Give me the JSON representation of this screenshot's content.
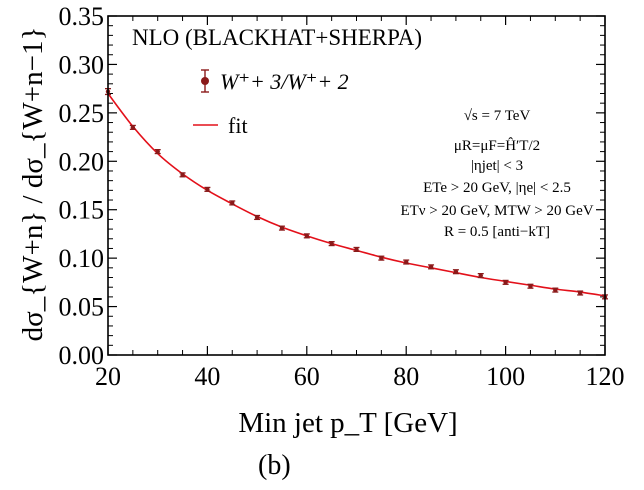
{
  "chart_data": {
    "type": "scatter",
    "title": "NLO (BLACKHAT+SHERPA)",
    "xlabel": "Min jet p_T  [GeV]",
    "ylabel": "dσ_{W+n} / dσ_{W+n−1}",
    "xlim": [
      20,
      120
    ],
    "ylim": [
      0.0,
      0.35
    ],
    "x_ticks": [
      20,
      40,
      60,
      80,
      100,
      120
    ],
    "y_ticks": [
      "0.00",
      "0.05",
      "0.10",
      "0.15",
      "0.20",
      "0.25",
      "0.30",
      "0.35"
    ],
    "legend_position": "top-left",
    "series": [
      {
        "name": "W⁺+ 3/W⁺+ 2",
        "color": "#8b1a1a",
        "marker": "point-with-errorbar",
        "x": [
          20,
          25,
          30,
          35,
          40,
          45,
          50,
          55,
          60,
          65,
          70,
          75,
          80,
          85,
          90,
          95,
          100,
          105,
          110,
          115,
          120
        ],
        "y": [
          0.272,
          0.235,
          0.21,
          0.186,
          0.171,
          0.157,
          0.142,
          0.131,
          0.123,
          0.115,
          0.109,
          0.1,
          0.096,
          0.091,
          0.086,
          0.082,
          0.075,
          0.071,
          0.067,
          0.064,
          0.06
        ],
        "err": [
          0.003,
          0.002,
          0.002,
          0.002,
          0.002,
          0.002,
          0.002,
          0.002,
          0.002,
          0.002,
          0.002,
          0.002,
          0.002,
          0.002,
          0.002,
          0.002,
          0.002,
          0.002,
          0.002,
          0.002,
          0.002
        ]
      },
      {
        "name": "fit",
        "color": "#e3101a",
        "marker": "line",
        "x": [
          20,
          25,
          30,
          35,
          40,
          45,
          50,
          55,
          60,
          65,
          70,
          75,
          80,
          85,
          90,
          95,
          100,
          105,
          110,
          115,
          120
        ],
        "y": [
          0.27,
          0.236,
          0.208,
          0.187,
          0.17,
          0.156,
          0.143,
          0.132,
          0.123,
          0.115,
          0.108,
          0.101,
          0.095,
          0.09,
          0.085,
          0.08,
          0.076,
          0.072,
          0.068,
          0.065,
          0.061
        ]
      }
    ],
    "annotations": [
      "√s = 7 TeV",
      "μR=μF=Ĥ′T/2",
      "|ηjet| < 3",
      "ETe > 20 GeV, |ηe| < 2.5",
      "ETν > 20 GeV, MTW > 20 GeV",
      "R = 0.5 [anti−kT]"
    ],
    "panel_label": "(b)"
  }
}
